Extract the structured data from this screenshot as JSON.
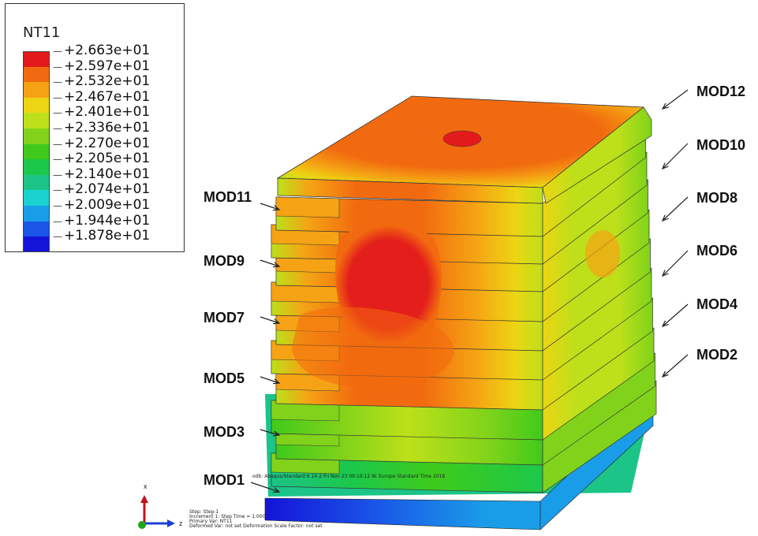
{
  "legend": {
    "title": "NT11",
    "labels": [
      "+2.663e+01",
      "+2.597e+01",
      "+2.532e+01",
      "+2.467e+01",
      "+2.401e+01",
      "+2.336e+01",
      "+2.270e+01",
      "+2.205e+01",
      "+2.140e+01",
      "+2.074e+01",
      "+2.009e+01",
      "+1.944e+01",
      "+1.878e+01"
    ],
    "colors": [
      "#e31a1c",
      "#f26a0f",
      "#f5a314",
      "#ecd513",
      "#bde01a",
      "#80d31a",
      "#3fca1c",
      "#1cc84a",
      "#1cc487",
      "#1ad3d1",
      "#1a9de8",
      "#1a55e8",
      "#1414d8"
    ]
  },
  "modules": {
    "mod1": "MOD1",
    "mod2": "MOD2",
    "mod3": "MOD3",
    "mod4": "MOD4",
    "mod5": "MOD5",
    "mod6": "MOD6",
    "mod7": "MOD7",
    "mod8": "MOD8",
    "mod9": "MOD9",
    "mod10": "MOD10",
    "mod11": "MOD11",
    "mod12": "MOD12"
  },
  "footer": {
    "odb_line": "odb: Abaqus/Standard 6.14-2   Fri Nov 23 09:10:12 W. Europe Standard Time 2018",
    "step_line": "Step: Step-1",
    "increment_line": "Increment    1: Step Time =    1.000",
    "primary_var_line": "Primary Var: NT11",
    "deformed_var_line": "Deformed Var: not set   Deformation Scale Factor: not set"
  },
  "triad": {
    "x": "x",
    "z": "z"
  },
  "colors": {
    "background": "#ffffff",
    "arrow": "#222222"
  }
}
